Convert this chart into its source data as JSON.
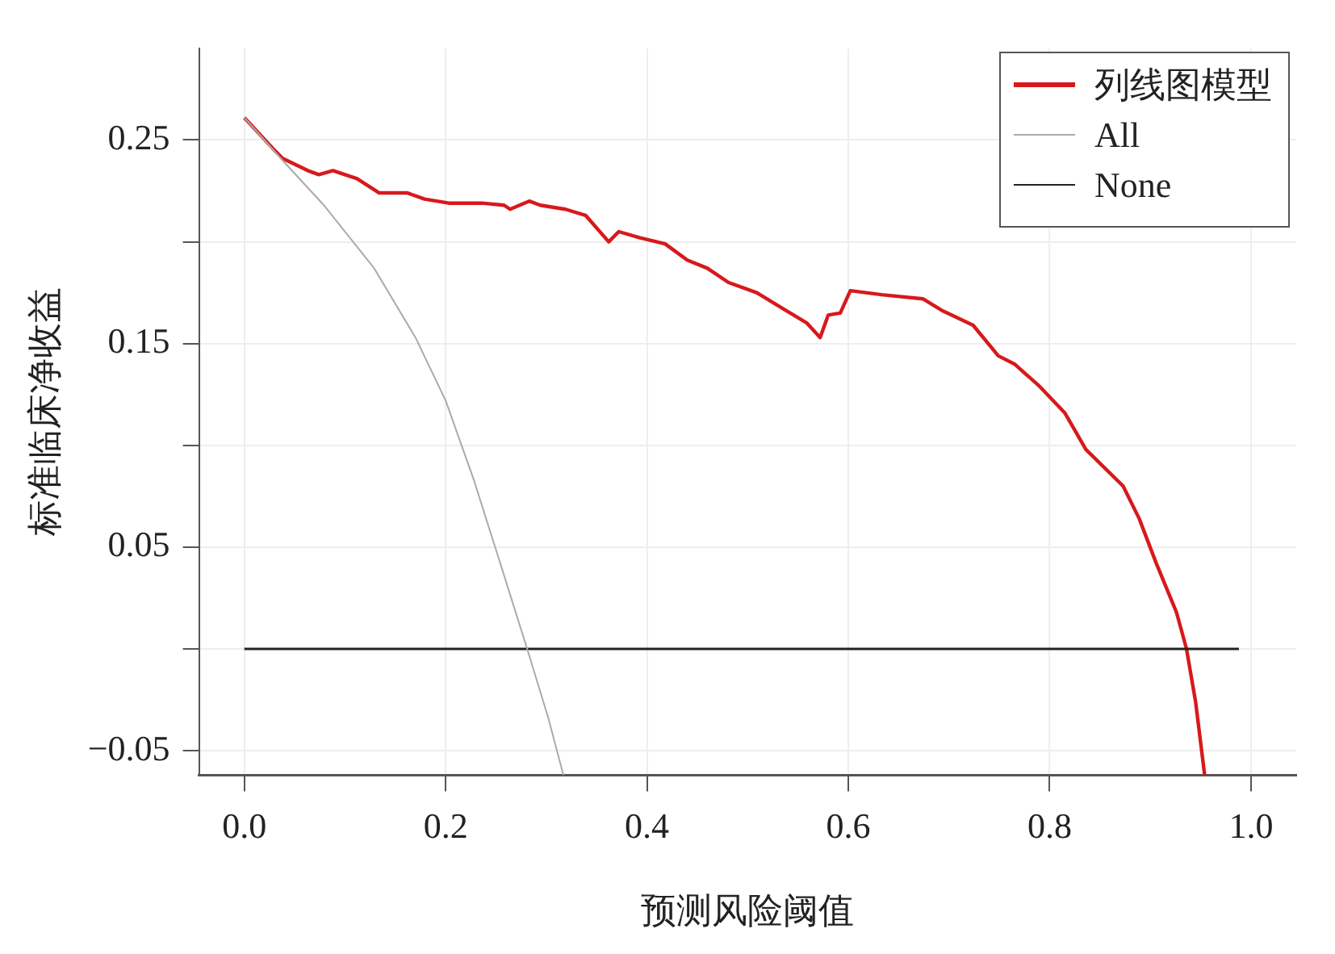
{
  "chart_data": {
    "type": "line",
    "xlabel": "预测风险阈值",
    "ylabel": "标准临床净收益",
    "xlim": [
      -0.045,
      1.045
    ],
    "ylim": [
      -0.062,
      0.295
    ],
    "xticks": [
      {
        "value": 0,
        "label": "0.0"
      },
      0.2,
      0.4,
      0.6,
      0.8,
      {
        "value": 1,
        "label": "1.0"
      }
    ],
    "yticks": [
      {
        "value": -0.05,
        "label": "−0.05"
      },
      {
        "value": 0,
        "label": null
      },
      0.05,
      {
        "value": 0.1,
        "label": null
      },
      0.15,
      {
        "value": 0.2,
        "label": null
      },
      0.25
    ],
    "grid": true,
    "legend": "top right",
    "marker": "none",
    "line_style": "solid",
    "series": [
      {
        "name": "列线图模型",
        "color": "#d7191c",
        "x": [
          0,
          0.028,
          0.038,
          0.063,
          0.074,
          0.088,
          0.112,
          0.134,
          0.162,
          0.179,
          0.203,
          0.236,
          0.258,
          0.264,
          0.283,
          0.294,
          0.319,
          0.339,
          0.362,
          0.372,
          0.393,
          0.418,
          0.44,
          0.46,
          0.481,
          0.509,
          0.539,
          0.559,
          0.572,
          0.58,
          0.592,
          0.602,
          0.633,
          0.674,
          0.694,
          0.724,
          0.749,
          0.765,
          0.79,
          0.815,
          0.836,
          0.873,
          0.889,
          0.906,
          0.926,
          0.936,
          0.945,
          0.954
        ],
        "values": [
          0.261,
          0.246,
          0.241,
          0.235,
          0.233,
          0.235,
          0.231,
          0.224,
          0.224,
          0.221,
          0.219,
          0.219,
          0.218,
          0.216,
          0.22,
          0.218,
          0.216,
          0.213,
          0.2,
          0.205,
          0.202,
          0.199,
          0.191,
          0.187,
          0.18,
          0.175,
          0.166,
          0.16,
          0.153,
          0.164,
          0.165,
          0.176,
          0.174,
          0.172,
          0.166,
          0.159,
          0.144,
          0.14,
          0.129,
          0.116,
          0.098,
          0.08,
          0.064,
          0.042,
          0.018,
          0,
          -0.026,
          -0.062
        ]
      },
      {
        "name": "All",
        "color": "#aaaaaa",
        "x": [
          0,
          0.038,
          0.079,
          0.129,
          0.17,
          0.2,
          0.228,
          0.253,
          0.281,
          0.302,
          0.317
        ],
        "values": [
          0.261,
          0.24,
          0.218,
          0.187,
          0.153,
          0.122,
          0.083,
          0.044,
          0,
          -0.034,
          -0.062
        ]
      },
      {
        "name": "None",
        "color": "#222222",
        "x": [
          0,
          0.988
        ],
        "values": [
          0,
          0
        ]
      }
    ]
  }
}
